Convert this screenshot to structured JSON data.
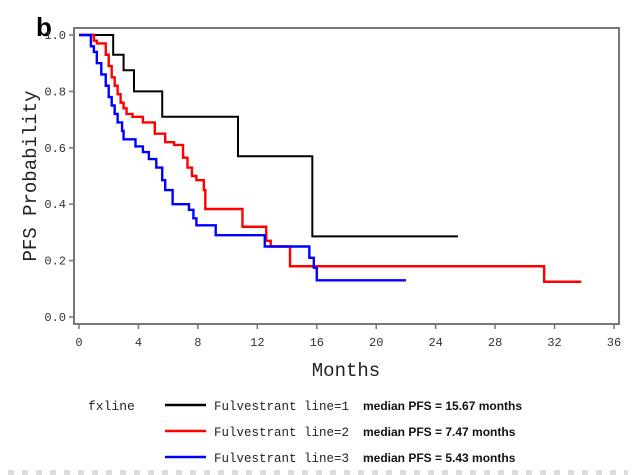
{
  "panel_label": "b",
  "chart_data": {
    "type": "line",
    "subtype": "kaplan-meier-step",
    "title": "",
    "xlabel": "Months",
    "ylabel": "PFS Probability",
    "xlim": [
      0,
      36
    ],
    "ylim": [
      0,
      1.0
    ],
    "x_ticks": [
      0,
      4,
      8,
      12,
      16,
      20,
      24,
      28,
      32,
      36
    ],
    "x_tick_labels": [
      "0",
      "4",
      "8",
      "12",
      "16",
      "20",
      "24",
      "28",
      "32",
      "36"
    ],
    "y_ticks": [
      0.0,
      0.2,
      0.4,
      0.6,
      0.8,
      1.0
    ],
    "y_tick_labels": [
      "0.0",
      "0.2",
      "0.4",
      "0.6",
      "0.8",
      "1.0"
    ],
    "grid": false,
    "legend_position": "bottom",
    "legend_title": "fxline",
    "series": [
      {
        "name": "Fulvestrant line=1",
        "color": "#000000",
        "median_label": "median PFS = 15.67 months",
        "x": [
          0,
          2.3,
          3.0,
          3.7,
          5.6,
          10.7,
          15.7,
          25.5
        ],
        "y": [
          1.0,
          0.93,
          0.875,
          0.8,
          0.71,
          0.57,
          0.286,
          0.286
        ]
      },
      {
        "name": "Fulvestrant line=2",
        "color": "#ff0000",
        "median_label": "median PFS = 7.47 months",
        "x": [
          0,
          1.0,
          1.2,
          1.8,
          2.0,
          2.2,
          2.4,
          2.6,
          2.8,
          3.0,
          3.2,
          3.6,
          4.3,
          5.1,
          5.8,
          6.4,
          7.0,
          7.3,
          7.6,
          7.9,
          8.4,
          8.5,
          11.0,
          12.6,
          12.9,
          14.2,
          31.3,
          33.8
        ],
        "y": [
          1.0,
          0.98,
          0.97,
          0.93,
          0.89,
          0.85,
          0.82,
          0.79,
          0.76,
          0.74,
          0.72,
          0.71,
          0.69,
          0.65,
          0.62,
          0.61,
          0.565,
          0.53,
          0.5,
          0.485,
          0.45,
          0.383,
          0.32,
          0.27,
          0.25,
          0.18,
          0.125,
          0.125
        ]
      },
      {
        "name": "Fulvestrant line=3",
        "color": "#0000ff",
        "median_label": "median PFS = 5.43 months",
        "x": [
          0,
          0.8,
          1.0,
          1.2,
          1.5,
          1.8,
          2.0,
          2.2,
          2.4,
          2.6,
          2.9,
          3.0,
          3.8,
          4.3,
          4.7,
          5.2,
          5.6,
          5.8,
          6.3,
          7.4,
          7.7,
          7.9,
          9.2,
          12.5,
          15.5,
          15.8,
          16.0,
          22.0
        ],
        "y": [
          1.0,
          0.96,
          0.94,
          0.9,
          0.86,
          0.82,
          0.78,
          0.75,
          0.72,
          0.69,
          0.66,
          0.63,
          0.605,
          0.585,
          0.56,
          0.53,
          0.485,
          0.45,
          0.4,
          0.38,
          0.35,
          0.325,
          0.29,
          0.25,
          0.21,
          0.175,
          0.13,
          0.13
        ]
      }
    ]
  }
}
